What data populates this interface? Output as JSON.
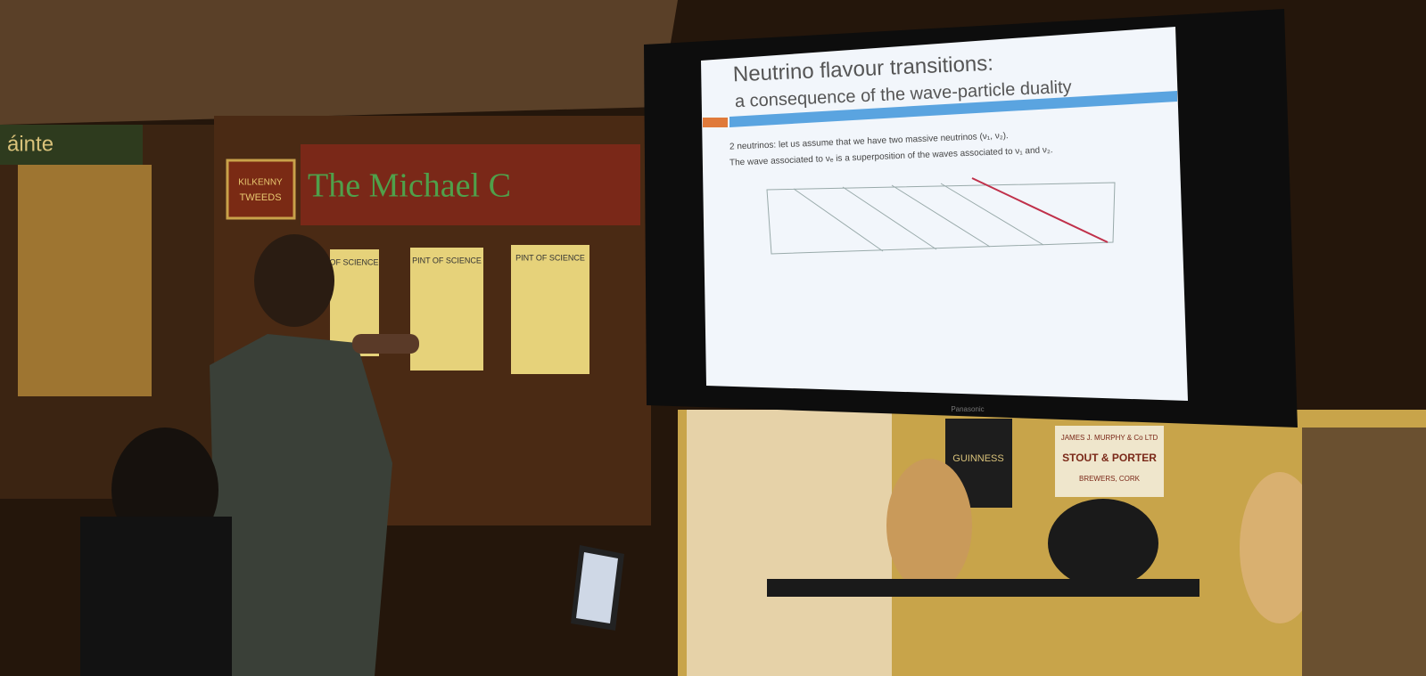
{
  "slide": {
    "title": "Neutrino flavour transitions:",
    "subtitle": "a consequence of the wave-particle duality",
    "lines": [
      "2 neutrinos: let us assume that we have two massive neutrinos (ν₁, ν₂).",
      "The wave associated to νₑ is a superposition of the waves associated to ν₁ and ν₂."
    ]
  },
  "signs": {
    "left_sign": "áinte",
    "small_sign": [
      "KILKENNY",
      "TWEEDS"
    ],
    "pub_name": "The Michael C"
  },
  "posters": [
    "OF SCIENCE",
    "PINT OF SCIENCE",
    "PINT OF SCIENCE"
  ],
  "tv_brand": "Panasonic",
  "wall_signs": {
    "guinness": "GUINNESS",
    "murphys": [
      "JAMES J. MURPHY & Co LTD",
      "STOUT & PORTER",
      "BREWERS, CORK"
    ]
  }
}
